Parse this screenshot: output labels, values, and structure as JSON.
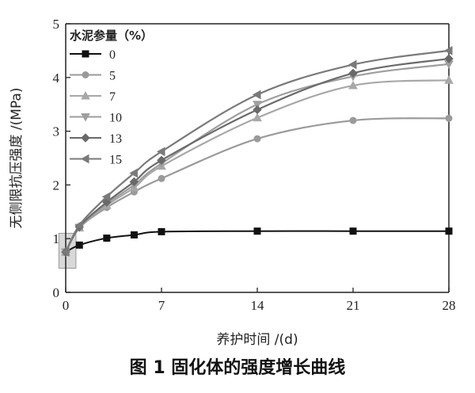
{
  "caption": "图 1 固化体的强度增长曲线",
  "chart_data": {
    "type": "line",
    "title": "",
    "xlabel": "养护时间 /(d)",
    "ylabel": "无侧限抗压强度 /(MPa)",
    "xlim": [
      0,
      28
    ],
    "ylim": [
      0,
      5
    ],
    "xticks": [
      0,
      7,
      14,
      21,
      28
    ],
    "yticks": [
      0,
      1,
      2,
      3,
      4,
      5
    ],
    "grid": false,
    "legend_title": "水泥参量（%）",
    "legend_position": "top-left",
    "series": [
      {
        "name": "0",
        "color": "#111111",
        "marker": "square",
        "x": [
          0,
          1,
          3,
          5,
          7,
          14,
          21,
          28
        ],
        "y": [
          0.75,
          0.88,
          1.01,
          1.07,
          1.13,
          1.14,
          1.14,
          1.14
        ]
      },
      {
        "name": "5",
        "color": "#9a9a9a",
        "marker": "circle",
        "x": [
          0,
          1,
          3,
          5,
          7,
          14,
          21,
          28
        ],
        "y": [
          0.75,
          1.2,
          1.58,
          1.87,
          2.12,
          2.86,
          3.2,
          3.24
        ]
      },
      {
        "name": "7",
        "color": "#a8a8a8",
        "marker": "triangle-up",
        "x": [
          0,
          1,
          3,
          5,
          7,
          14,
          21,
          28
        ],
        "y": [
          0.75,
          1.2,
          1.62,
          1.95,
          2.35,
          3.25,
          3.85,
          3.95
        ]
      },
      {
        "name": "10",
        "color": "#9e9e9e",
        "marker": "triangle-down",
        "x": [
          0,
          1,
          3,
          5,
          7,
          14,
          21,
          28
        ],
        "y": [
          0.75,
          1.21,
          1.65,
          2.0,
          2.4,
          3.5,
          4.02,
          4.25
        ]
      },
      {
        "name": "13",
        "color": "#6a6a6a",
        "marker": "diamond",
        "x": [
          0,
          1,
          3,
          5,
          7,
          14,
          21,
          28
        ],
        "y": [
          0.75,
          1.22,
          1.68,
          2.06,
          2.46,
          3.4,
          4.08,
          4.35
        ]
      },
      {
        "name": "15",
        "color": "#7a7a7a",
        "marker": "triangle-left",
        "x": [
          0,
          1,
          3,
          5,
          7,
          14,
          21,
          28
        ],
        "y": [
          0.75,
          1.25,
          1.78,
          2.22,
          2.62,
          3.68,
          4.24,
          4.5
        ]
      }
    ],
    "highlight_box": {
      "x": [
        -0.5,
        0.75
      ],
      "y": [
        0.45,
        1.1
      ],
      "color": "#c8c8c8"
    }
  }
}
